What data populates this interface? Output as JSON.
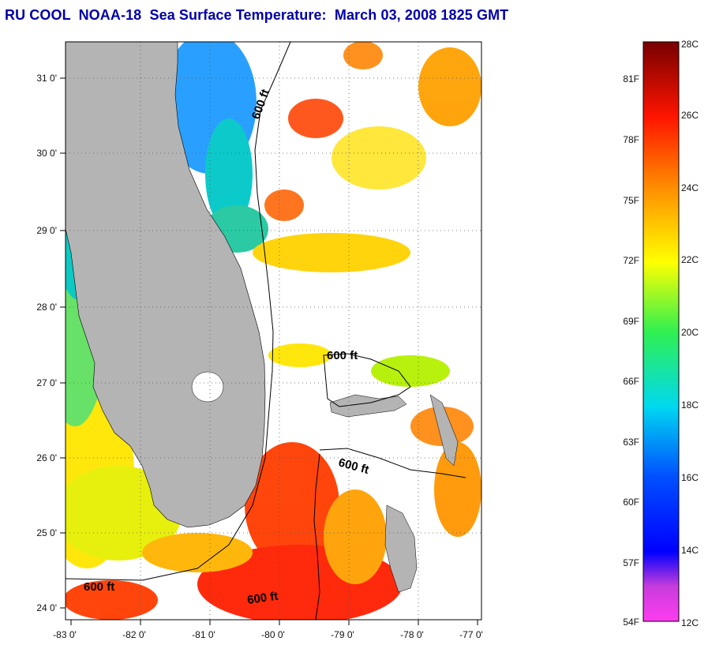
{
  "title": "RU COOL  NOAA-18  Sea Surface Temperature:  March 03, 2008 1825 GMT",
  "map": {
    "x_ticks": [
      "-83 0'",
      "-82 0'",
      "-81 0'",
      "-80 0'",
      "-79 0'",
      "-78 0'",
      "-77 0'"
    ],
    "y_ticks": [
      "31 0'",
      "30 0'",
      "29 0'",
      "28 0'",
      "27 0'",
      "26 0'",
      "25 0'",
      "24 0'"
    ],
    "contour_labels": [
      "600 ft",
      "600 ft",
      "600 ft",
      "600 ft",
      "600 ft"
    ],
    "land_color": "#b4b4b4",
    "grid": "dotted"
  },
  "colorbar": {
    "fahrenheit_labels": [
      "81F",
      "78F",
      "75F",
      "72F",
      "69F",
      "66F",
      "63F",
      "60F",
      "57F",
      "54F"
    ],
    "celsius_labels": [
      "28C",
      "26C",
      "24C",
      "22C",
      "20C",
      "18C",
      "16C",
      "14C",
      "12C"
    ],
    "range_c": [
      12,
      28
    ]
  }
}
